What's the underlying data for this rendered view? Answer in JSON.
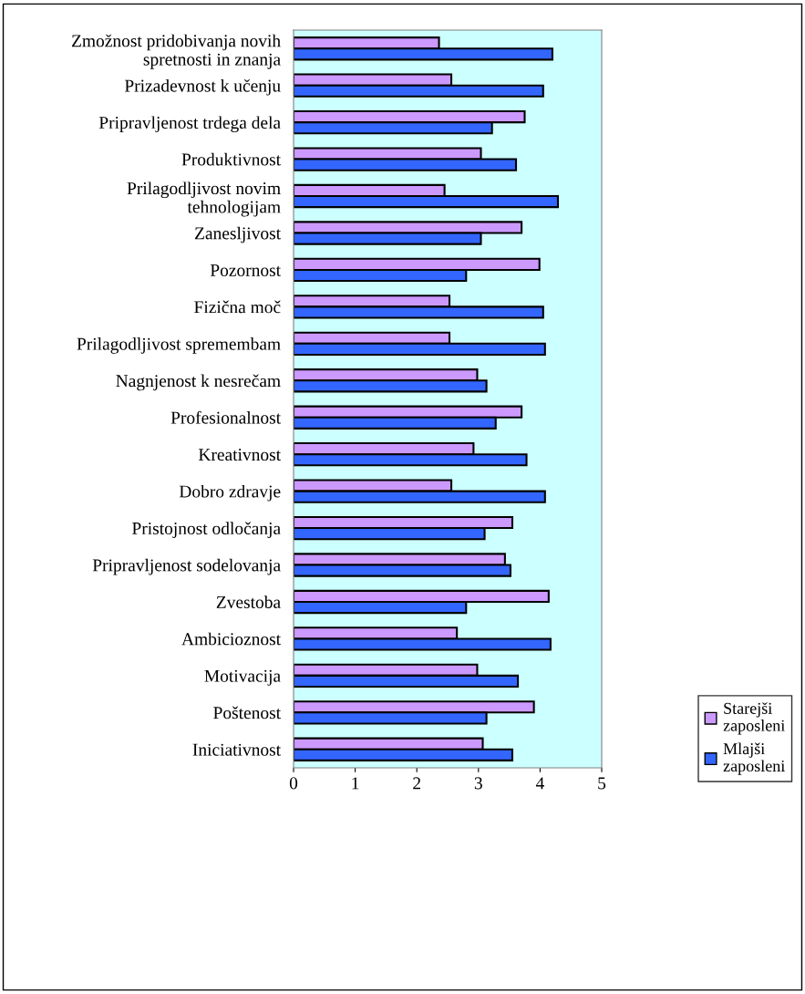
{
  "chart_data": {
    "type": "bar",
    "orientation": "horizontal",
    "categories": [
      "Zmožnost pridobivanja novih\nspretnosti in znanja",
      "Prizadevnost k učenju",
      "Pripravljenost trdega dela",
      "Produktivnost",
      "Prilagodljivost novim\ntehnologijam",
      "Zanesljivost",
      "Pozornost",
      "Fizična moč",
      "Prilagodljivost spremembam",
      "Nagnjenost k nesrečam",
      "Profesionalnost",
      "Kreativnost",
      "Dobro zdravje",
      "Pristojnost odločanja",
      "Pripravljenost sodelovanja",
      "Zvestoba",
      "Ambicioznost",
      "Motivacija",
      "Poštenost",
      "Iniciativnost"
    ],
    "series": [
      {
        "name": "Starejši\nzaposleni",
        "color": "#cc99ff",
        "values": [
          2.36,
          2.56,
          3.75,
          3.04,
          2.45,
          3.7,
          3.99,
          2.53,
          2.53,
          2.98,
          3.7,
          2.92,
          2.56,
          3.55,
          3.43,
          4.14,
          2.65,
          2.98,
          3.9,
          3.07
        ]
      },
      {
        "name": "Mlajši\nzaposleni",
        "color": "#3366ff",
        "values": [
          4.2,
          4.05,
          3.22,
          3.61,
          4.29,
          3.04,
          2.8,
          4.05,
          4.08,
          3.13,
          3.28,
          3.78,
          4.08,
          3.1,
          3.52,
          2.8,
          4.17,
          3.64,
          3.13,
          3.55
        ]
      }
    ],
    "xlim": [
      0,
      5
    ],
    "xticks": [
      0,
      1,
      2,
      3,
      4,
      5
    ],
    "grid": false,
    "legend": "bottom right"
  }
}
